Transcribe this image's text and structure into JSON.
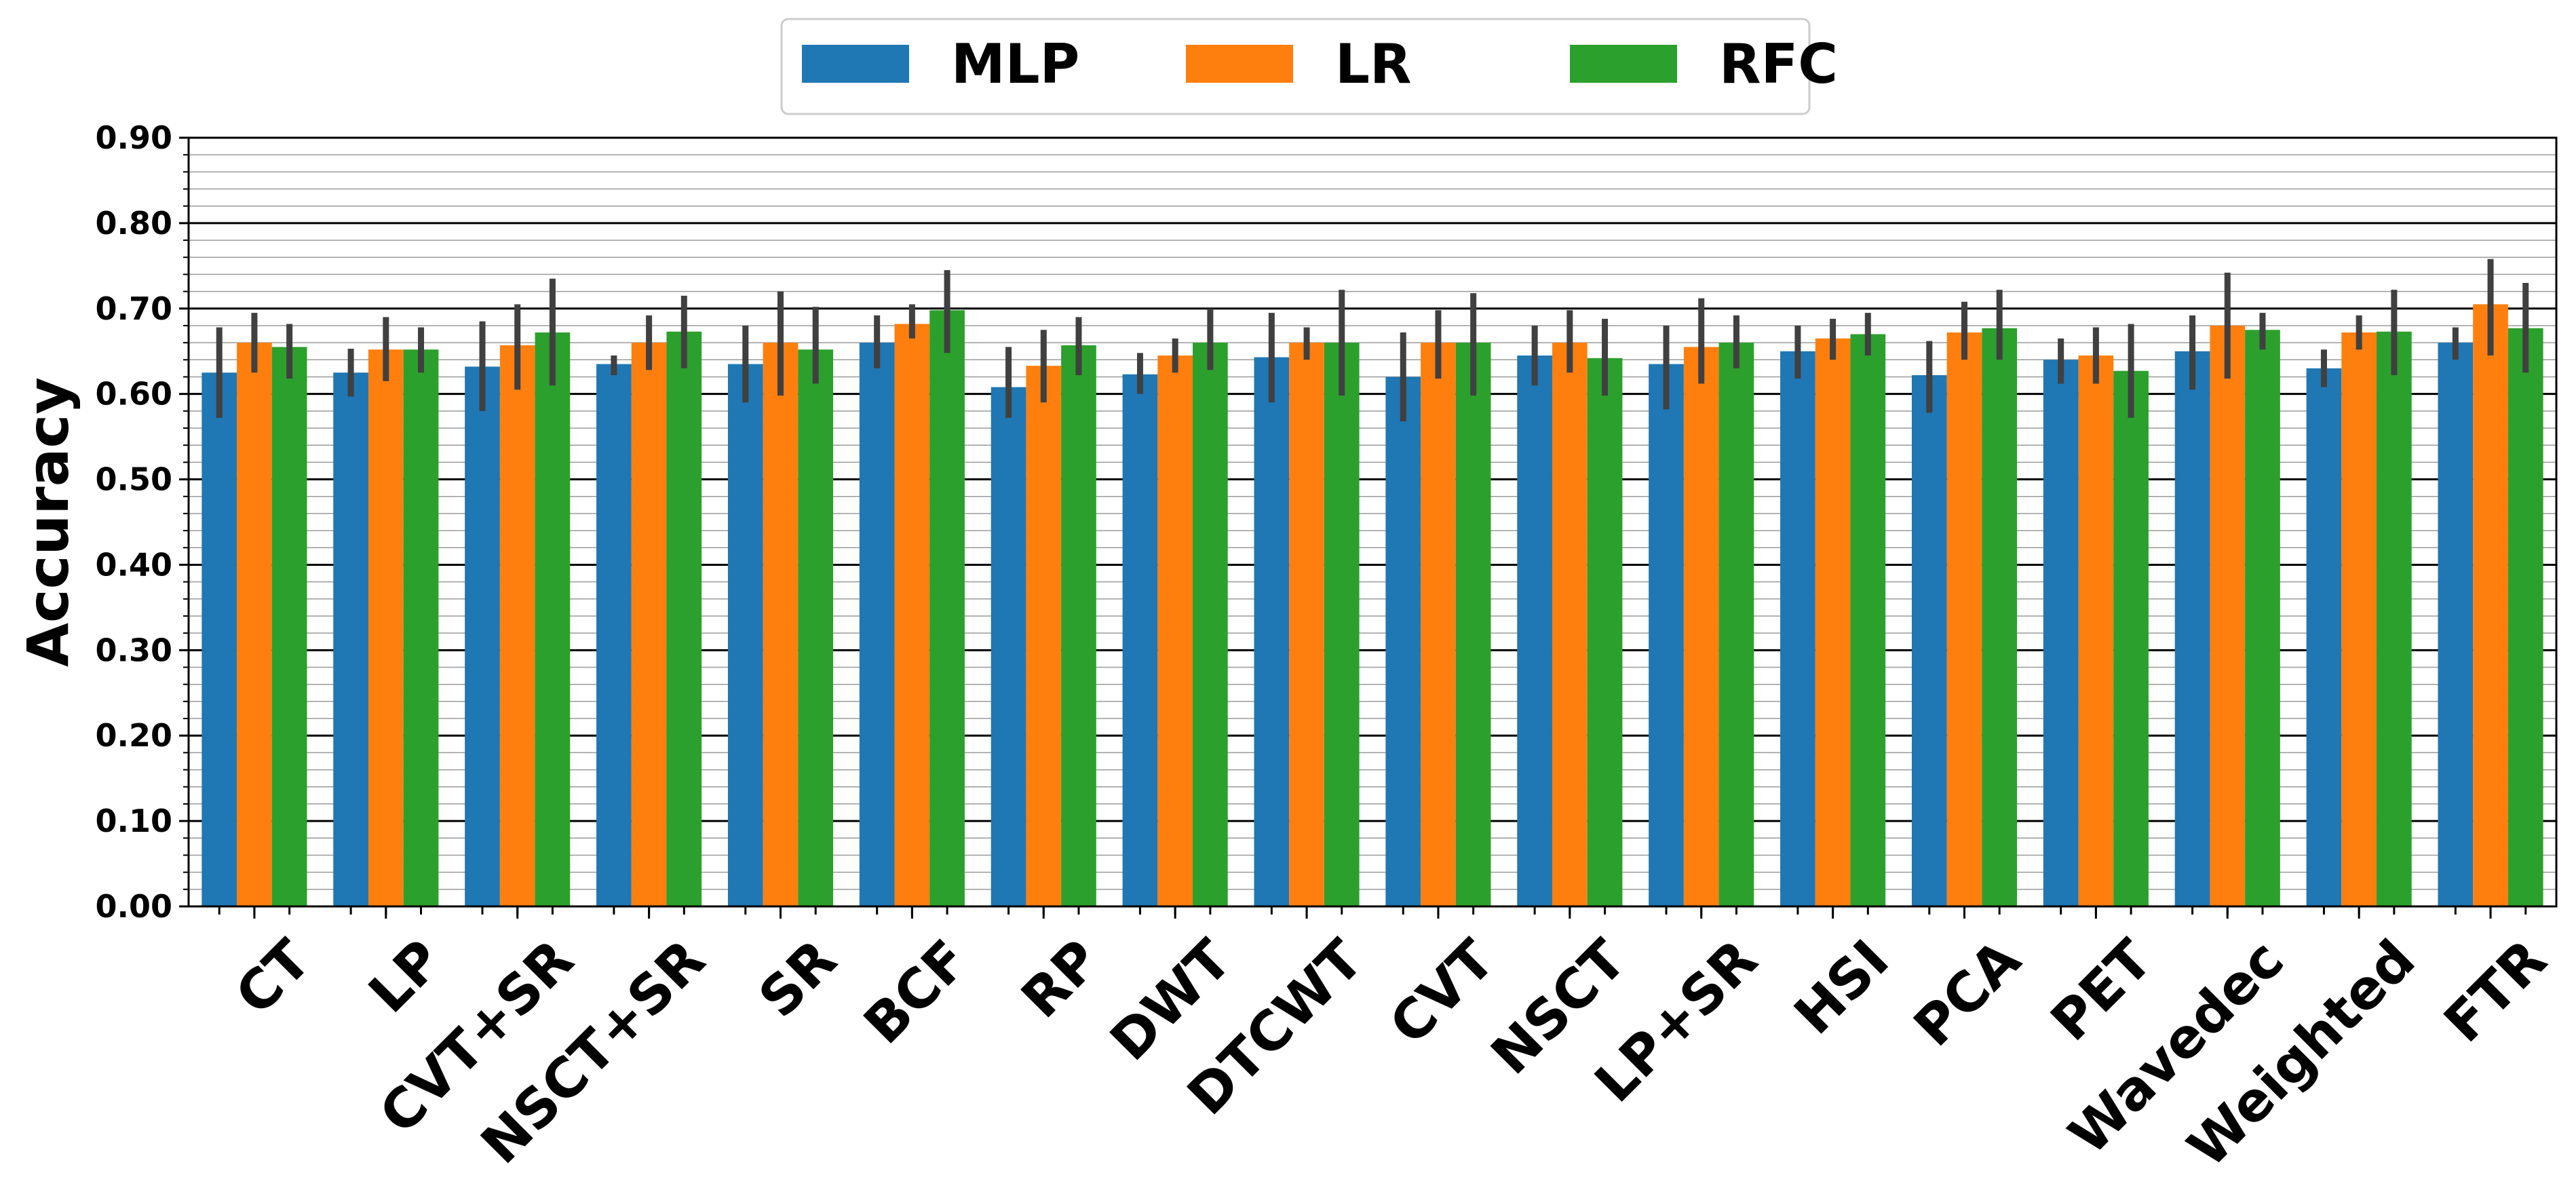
{
  "chart_data": {
    "type": "bar",
    "ylabel": "Accuracy",
    "xlabel": "",
    "ylim": [
      0,
      0.9
    ],
    "yticks": [
      "0.00",
      "0.10",
      "0.20",
      "0.30",
      "0.40",
      "0.50",
      "0.60",
      "0.70",
      "0.80",
      "0.90"
    ],
    "grid": true,
    "legend_position": "top-center",
    "categories": [
      "CT",
      "LP",
      "CVT+SR",
      "NSCT+SR",
      "SR",
      "BCF",
      "RP",
      "DWT",
      "DTCWT",
      "CVT",
      "NSCT",
      "LP+SR",
      "HSI",
      "PCA",
      "PET",
      "Wavedec",
      "Weighted",
      "FTR"
    ],
    "series": [
      {
        "name": "MLP",
        "color": "#1f77b4",
        "values": [
          0.625,
          0.625,
          0.632,
          0.635,
          0.635,
          0.66,
          0.608,
          0.623,
          0.643,
          0.62,
          0.645,
          0.635,
          0.65,
          0.622,
          0.64,
          0.65,
          0.63,
          0.66
        ],
        "err_low": [
          0.572,
          0.597,
          0.58,
          0.622,
          0.59,
          0.63,
          0.572,
          0.6,
          0.59,
          0.568,
          0.61,
          0.582,
          0.618,
          0.578,
          0.612,
          0.605,
          0.608,
          0.64
        ],
        "err_high": [
          0.678,
          0.653,
          0.685,
          0.645,
          0.68,
          0.692,
          0.655,
          0.648,
          0.695,
          0.672,
          0.68,
          0.68,
          0.68,
          0.662,
          0.665,
          0.692,
          0.652,
          0.678
        ]
      },
      {
        "name": "LR",
        "color": "#ff7f0e",
        "values": [
          0.66,
          0.652,
          0.657,
          0.66,
          0.66,
          0.682,
          0.633,
          0.645,
          0.66,
          0.66,
          0.66,
          0.655,
          0.665,
          0.672,
          0.645,
          0.68,
          0.672,
          0.705
        ],
        "err_low": [
          0.625,
          0.615,
          0.605,
          0.628,
          0.598,
          0.665,
          0.59,
          0.625,
          0.64,
          0.618,
          0.625,
          0.612,
          0.64,
          0.64,
          0.612,
          0.618,
          0.652,
          0.645
        ],
        "err_high": [
          0.695,
          0.69,
          0.705,
          0.692,
          0.72,
          0.705,
          0.675,
          0.665,
          0.678,
          0.698,
          0.698,
          0.712,
          0.688,
          0.708,
          0.678,
          0.742,
          0.692,
          0.758
        ]
      },
      {
        "name": "RFC",
        "color": "#2ca02c",
        "values": [
          0.655,
          0.652,
          0.672,
          0.673,
          0.652,
          0.698,
          0.657,
          0.66,
          0.66,
          0.66,
          0.642,
          0.66,
          0.67,
          0.677,
          0.627,
          0.675,
          0.673,
          0.677
        ],
        "err_low": [
          0.618,
          0.625,
          0.61,
          0.63,
          0.612,
          0.648,
          0.622,
          0.628,
          0.598,
          0.598,
          0.598,
          0.63,
          0.645,
          0.64,
          0.572,
          0.652,
          0.622,
          0.625
        ],
        "err_high": [
          0.682,
          0.678,
          0.735,
          0.715,
          0.702,
          0.745,
          0.69,
          0.7,
          0.722,
          0.718,
          0.688,
          0.692,
          0.695,
          0.722,
          0.682,
          0.695,
          0.722,
          0.73
        ]
      }
    ]
  }
}
